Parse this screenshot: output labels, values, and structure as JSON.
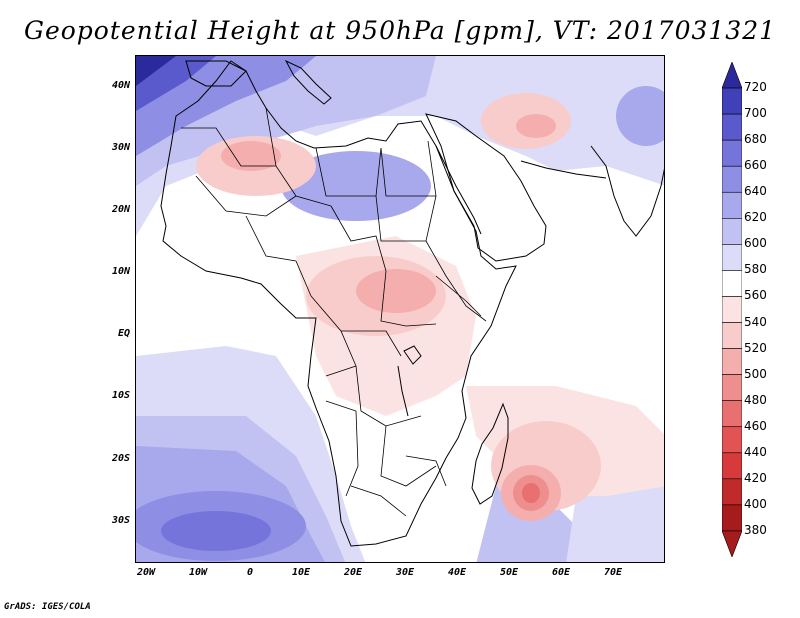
{
  "title": "Geopotential Height at 950hPa [gpm], VT: 2017031321",
  "credit": "GrADS: IGES/COLA",
  "map": {
    "variable": "Geopotential Height",
    "level": "950hPa",
    "units": "gpm",
    "valid_time": "2017031321",
    "lat_labels": [
      "40N",
      "30N",
      "20N",
      "10N",
      "EQ",
      "10S",
      "20S",
      "30S"
    ],
    "lon_labels": [
      "20W",
      "10W",
      "0",
      "10E",
      "20E",
      "30E",
      "40E",
      "50E",
      "60E",
      "70E"
    ]
  },
  "colorbar": {
    "levels": [
      720,
      700,
      680,
      660,
      640,
      620,
      600,
      580,
      560,
      540,
      520,
      500,
      480,
      460,
      440,
      420,
      400,
      380
    ],
    "colors": {
      "c380": "#a61c1c",
      "c400": "#c02a2a",
      "c420": "#d63a3a",
      "c440": "#e25353",
      "c460": "#e87070",
      "c480": "#ee8e8e",
      "c500": "#f4aeae",
      "c520": "#f9cccc",
      "c540": "#fbe3e3",
      "c560": "#ffffff",
      "c580": "#dcdcf8",
      "c600": "#c2c2f2",
      "c620": "#a8a8ec",
      "c640": "#8e8ee4",
      "c660": "#7474da",
      "c680": "#5a5acd",
      "c700": "#4040b8",
      "c720": "#2a2a9c"
    }
  }
}
